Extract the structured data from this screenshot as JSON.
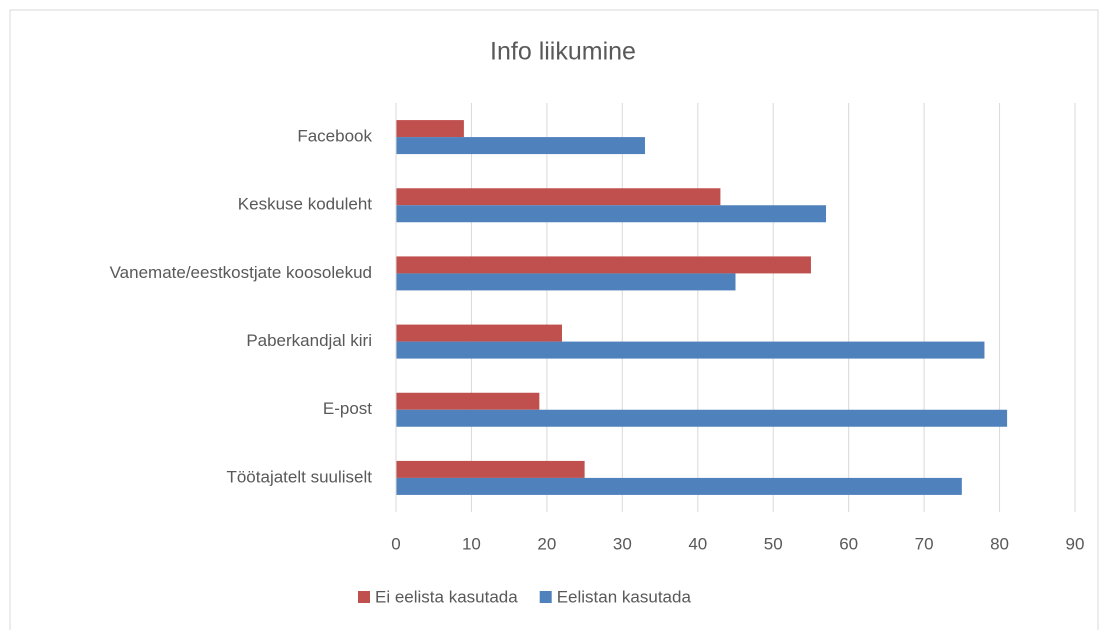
{
  "chart_data": {
    "type": "bar",
    "orientation": "horizontal",
    "title": "Info liikumine",
    "categories": [
      "Facebook",
      "Keskuse koduleht",
      "Vanemate/eestkostjate koosolekud",
      "Paberkandjal kiri",
      "E-post",
      "Töötajatelt suuliselt"
    ],
    "series": [
      {
        "name": "Ei eelista kasutada",
        "color": "#c0504d",
        "values": [
          9,
          43,
          55,
          22,
          19,
          25
        ]
      },
      {
        "name": "Eelistan kasutada",
        "color": "#4f81bd",
        "values": [
          33,
          57,
          45,
          78,
          81,
          75
        ]
      }
    ],
    "xlim": [
      0,
      90
    ],
    "xticks": [
      0,
      10,
      20,
      30,
      40,
      50,
      60,
      70,
      80,
      90
    ],
    "grid": true,
    "legend": "bottom"
  }
}
